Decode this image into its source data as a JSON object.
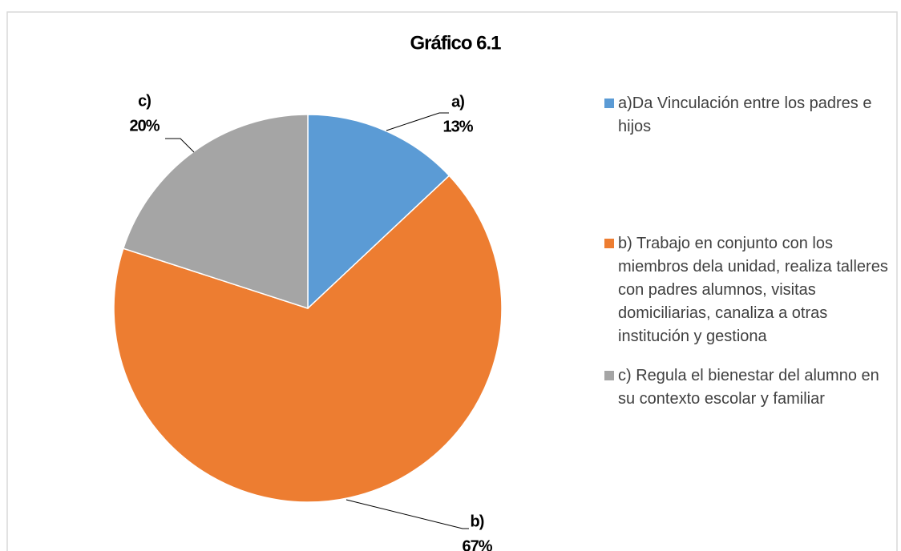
{
  "chart_data": {
    "type": "pie",
    "title": "Gráfico 6.1",
    "categories": [
      "a)Da Vinculación entre los padres e hijos",
      "b) Trabajo en conjunto con los miembros dela unidad, realiza talleres con padres alumnos, visitas domiciliarias, canaliza a otras institución y gestiona",
      "c) Regula el bienestar del alumno en su contexto escolar y familiar"
    ],
    "slice_labels": [
      "a)",
      "b)",
      "c)"
    ],
    "values": [
      13,
      67,
      20
    ],
    "value_labels": [
      "13%",
      "67%",
      "20%"
    ],
    "colors": [
      "#5b9bd5",
      "#ed7d31",
      "#a5a5a5"
    ],
    "legend": "right"
  }
}
